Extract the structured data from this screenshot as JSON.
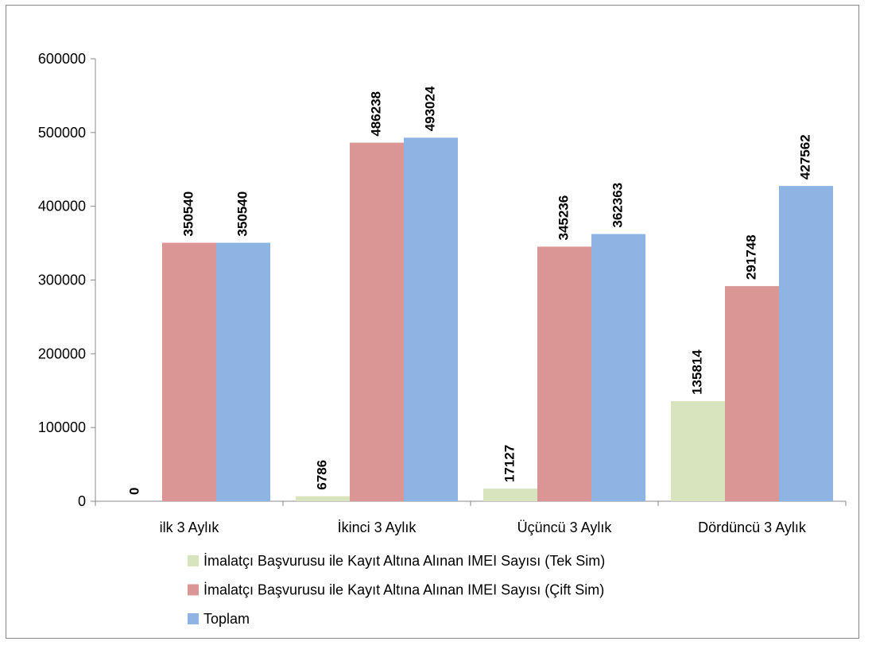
{
  "chart_data": {
    "type": "bar",
    "categories": [
      "ilk 3 Aylık",
      "İkinci 3 Aylık",
      "Üçüncü 3 Aylık",
      "Dördüncü 3 Aylık"
    ],
    "series": [
      {
        "name": "İmalatçı Başvurusu ile Kayıt Altına Alınan IMEI Sayısı (Tek Sim)",
        "color": "#d7e4bd",
        "values": [
          0,
          6786,
          17127,
          135814
        ]
      },
      {
        "name": "İmalatçı Başvurusu ile Kayıt Altına Alınan IMEI Sayısı (Çift Sim)",
        "color": "#d99694",
        "values": [
          350540,
          486238,
          345236,
          291748
        ]
      },
      {
        "name": "Toplam",
        "color": "#8eb4e3",
        "values": [
          350540,
          493024,
          362363,
          427562
        ]
      }
    ],
    "ylim": [
      0,
      600000
    ],
    "yticks": [
      0,
      100000,
      200000,
      300000,
      400000,
      500000,
      600000
    ],
    "grid": false,
    "legend": "bottom"
  }
}
